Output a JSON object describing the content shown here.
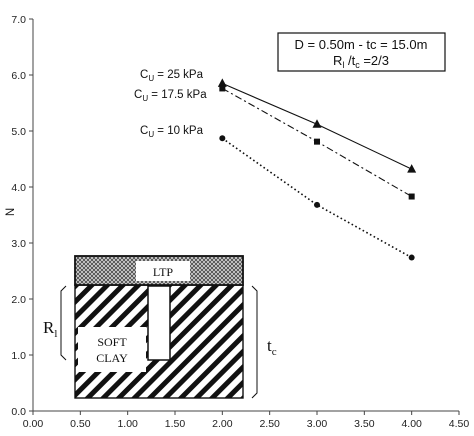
{
  "chart_data": {
    "type": "line",
    "title": "",
    "xlabel": "",
    "ylabel": "N",
    "xlim": [
      0,
      4.5
    ],
    "ylim": [
      0,
      7.0
    ],
    "xticks": [
      "0.00",
      "0.50",
      "1.00",
      "1.50",
      "2.00",
      "2.50",
      "3.00",
      "3.50",
      "4.00",
      "4.50"
    ],
    "yticks": [
      "0.0",
      "1.0",
      "2.0",
      "3.0",
      "4.0",
      "5.0",
      "6.0",
      "7.0"
    ],
    "grid": false,
    "legend_box": {
      "line1": "D = 0.50m  - tc = 15.0m",
      "line2_main": "R",
      "line2_sub": "l",
      "line2_mid": " /t",
      "line2_sub2": "c",
      "line2_end": " =2/3"
    },
    "series": [
      {
        "name": "Cu = 25 kPa",
        "label_main": "C",
        "label_sub": "U",
        "label_rest": " = 25 kPa",
        "marker": "triangle",
        "line_style": "solid",
        "x": [
          2.0,
          3.0,
          4.0
        ],
        "y": [
          5.85,
          5.12,
          4.32
        ]
      },
      {
        "name": "Cu = 17.5 kPa",
        "label_main": "C",
        "label_sub": "U",
        "label_rest": " = 17.5 kPa",
        "marker": "square",
        "line_style": "dashdot",
        "x": [
          2.0,
          3.0,
          4.0
        ],
        "y": [
          5.76,
          4.81,
          3.83
        ]
      },
      {
        "name": "Cu = 10 kPa",
        "label_main": "C",
        "label_sub": "U",
        "label_rest": " = 10 kPa",
        "marker": "circle",
        "line_style": "dotted",
        "x": [
          2.0,
          3.0,
          4.0
        ],
        "y": [
          4.87,
          3.68,
          2.74
        ]
      }
    ],
    "diagram": {
      "ltp_label": "LTP",
      "soil_label_line1": "SOFT",
      "soil_label_line2": "CLAY",
      "rl_main": "R",
      "rl_sub": "l",
      "tc_main": "t",
      "tc_sub": "c"
    }
  }
}
